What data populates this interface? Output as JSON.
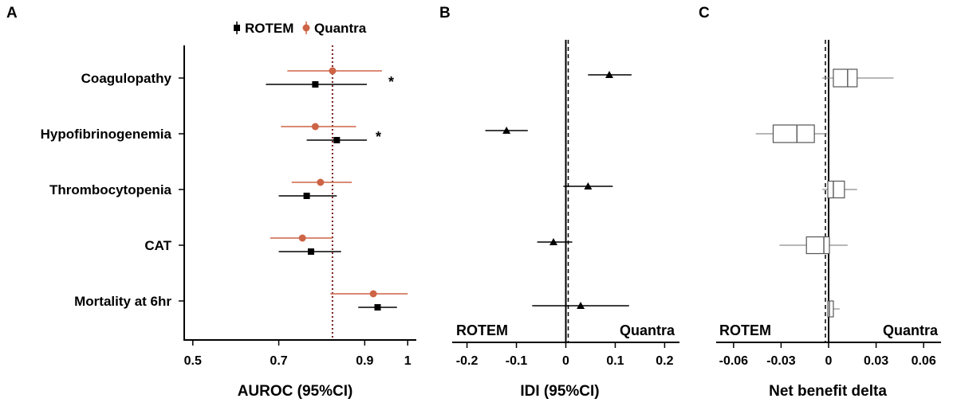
{
  "colors": {
    "rotem": "#000000",
    "quantra": "#cd6446",
    "reference": "#7a1f1f",
    "box_stroke": "#555555",
    "whisker": "#8c8c8c"
  },
  "panels": {
    "a": "A",
    "b": "B",
    "c": "C"
  },
  "chart_data": [
    {
      "type": "forest",
      "panel": "A",
      "xlabel": "AUROC (95%CI)",
      "xlim": [
        0.48,
        1.02
      ],
      "xticks": [
        0.5,
        0.7,
        0.9,
        1
      ],
      "xtick_labels": [
        "0.5",
        "0.7",
        "0.9",
        "1"
      ],
      "reference_line": 0.825,
      "legend": [
        {
          "name": "ROTEM",
          "marker": "square",
          "color": "#000000"
        },
        {
          "name": "Quantra",
          "marker": "circle",
          "color": "#cd6446"
        }
      ],
      "categories": [
        "Coagulopathy",
        "Hypofibrinogenemia",
        "Thrombocytopenia",
        "CAT",
        "Mortality at 6hr"
      ],
      "significance": [
        "*",
        "*",
        "",
        "",
        ""
      ],
      "series": [
        {
          "name": "Quantra",
          "marker": "circle",
          "color": "#cd6446",
          "values": [
            0.825,
            0.785,
            0.797,
            0.755,
            0.92
          ],
          "lower": [
            0.72,
            0.705,
            0.73,
            0.68,
            0.82
          ],
          "upper": [
            0.94,
            0.88,
            0.87,
            0.825,
            1.0
          ]
        },
        {
          "name": "ROTEM",
          "marker": "square",
          "color": "#000000",
          "values": [
            0.785,
            0.835,
            0.765,
            0.775,
            0.93
          ],
          "lower": [
            0.67,
            0.765,
            0.7,
            0.7,
            0.885
          ],
          "upper": [
            0.905,
            0.905,
            0.835,
            0.845,
            0.975
          ]
        }
      ]
    },
    {
      "type": "forest",
      "panel": "B",
      "xlabel": "IDI (95%CI)",
      "xlim": [
        -0.23,
        0.23
      ],
      "xticks": [
        -0.2,
        -0.1,
        0,
        0.1,
        0.2
      ],
      "xtick_labels": [
        "-0.2",
        "-0.1",
        "0",
        "0.1",
        "0.2"
      ],
      "left_label": "ROTEM",
      "right_label": "Quantra",
      "categories": [
        "Coagulopathy",
        "Hypofibrinogenemia",
        "Thrombocytopenia",
        "CAT",
        "Mortality at 6hr"
      ],
      "marker": "triangle",
      "values": [
        0.088,
        -0.12,
        0.045,
        -0.025,
        0.03
      ],
      "lower": [
        0.045,
        -0.163,
        -0.005,
        -0.058,
        -0.068
      ],
      "upper": [
        0.133,
        -0.077,
        0.095,
        0.013,
        0.128
      ]
    },
    {
      "type": "boxplot",
      "panel": "C",
      "xlabel": "Net benefit delta",
      "xlim": [
        -0.071,
        0.071
      ],
      "xticks": [
        -0.06,
        -0.03,
        0,
        0.03,
        0.06
      ],
      "xtick_labels": [
        "-0.06",
        "-0.03",
        "0",
        "0.03",
        "0.06"
      ],
      "left_label": "ROTEM",
      "right_label": "Quantra",
      "categories": [
        "Coagulopathy",
        "Hypofibrinogenemia",
        "Thrombocytopenia",
        "CAT",
        "Mortality at 6hr"
      ],
      "boxes": [
        {
          "min": -0.004,
          "q1": 0.003,
          "median": 0.012,
          "q3": 0.018,
          "max": 0.041
        },
        {
          "min": -0.046,
          "q1": -0.035,
          "median": -0.02,
          "q3": -0.009,
          "max": -0.001
        },
        {
          "min": -0.004,
          "q1": -0.0005,
          "median": 0.003,
          "q3": 0.01,
          "max": 0.018
        },
        {
          "min": -0.031,
          "q1": -0.014,
          "median": -0.003,
          "q3": 0.0005,
          "max": 0.012
        },
        {
          "min": -0.0005,
          "q1": -0.0005,
          "median": 0.0005,
          "q3": 0.003,
          "max": 0.007
        }
      ]
    }
  ]
}
